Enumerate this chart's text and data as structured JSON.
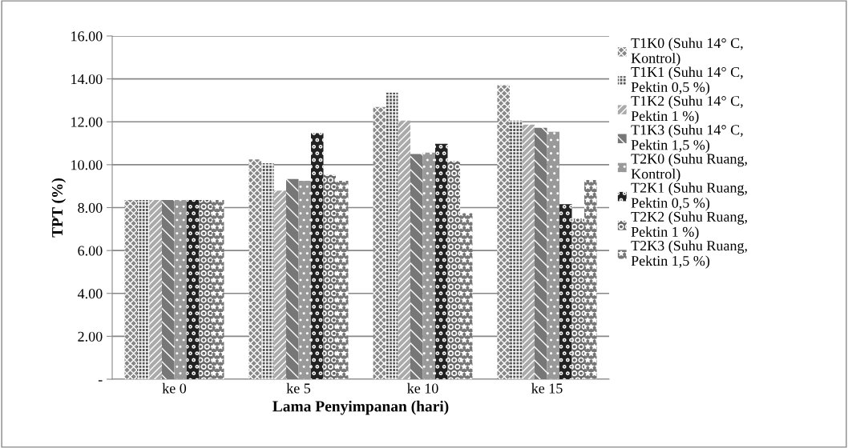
{
  "chart_data": {
    "type": "bar",
    "xlabel": "Lama Penyimpanan (hari)",
    "ylabel": "TPT (%)",
    "categories": [
      "ke 0",
      "ke 5",
      "ke 10",
      "ke 15"
    ],
    "series": [
      {
        "name": "T1K0 (Suhu 14° C, Kontrol)",
        "color": "#888888",
        "values": [
          8.35,
          10.25,
          12.69,
          13.71
        ]
      },
      {
        "name": "T1K1 (Suhu 14° C, Pektin 0,5 %)",
        "color": "#555555",
        "values": [
          8.35,
          10.07,
          13.36,
          12.06
        ]
      },
      {
        "name": "T1K2 (Suhu 14° C, Pektin 1 %)",
        "color": "#aaaaaa",
        "values": [
          8.35,
          8.79,
          12.06,
          11.87
        ]
      },
      {
        "name": "T1K3 (Suhu 14° C, Pektin 1,5 %)",
        "color": "#777777",
        "values": [
          8.35,
          9.33,
          10.5,
          11.72
        ]
      },
      {
        "name": "T2K0 (Suhu Ruang, Kontrol)",
        "color": "#999999",
        "values": [
          8.35,
          9.25,
          10.56,
          11.53
        ]
      },
      {
        "name": "T2K1 (Suhu Ruang, Pektin 0,5 %)",
        "color": "#222222",
        "values": [
          8.35,
          11.47,
          10.97,
          8.16
        ]
      },
      {
        "name": "T2K2 (Suhu Ruang, Pektin 1 %)",
        "color": "#666666",
        "values": [
          8.35,
          9.53,
          10.16,
          7.49
        ]
      },
      {
        "name": "T2K3 (Suhu Ruang, Pektin 1,5 %)",
        "color": "#777777",
        "values": [
          8.35,
          9.25,
          7.74,
          9.29
        ]
      }
    ],
    "ylim": [
      0,
      16
    ],
    "yticks": [
      {
        "value": 0,
        "label": "-"
      },
      {
        "value": 2,
        "label": "2.00"
      },
      {
        "value": 4,
        "label": "4.00"
      },
      {
        "value": 6,
        "label": "6.00"
      },
      {
        "value": 8,
        "label": "8.00"
      },
      {
        "value": 10,
        "label": "10.00"
      },
      {
        "value": 12,
        "label": "12.00"
      },
      {
        "value": 14,
        "label": "14.00"
      },
      {
        "value": 16,
        "label": "16.00"
      }
    ],
    "grid": "y",
    "legend": "right"
  }
}
